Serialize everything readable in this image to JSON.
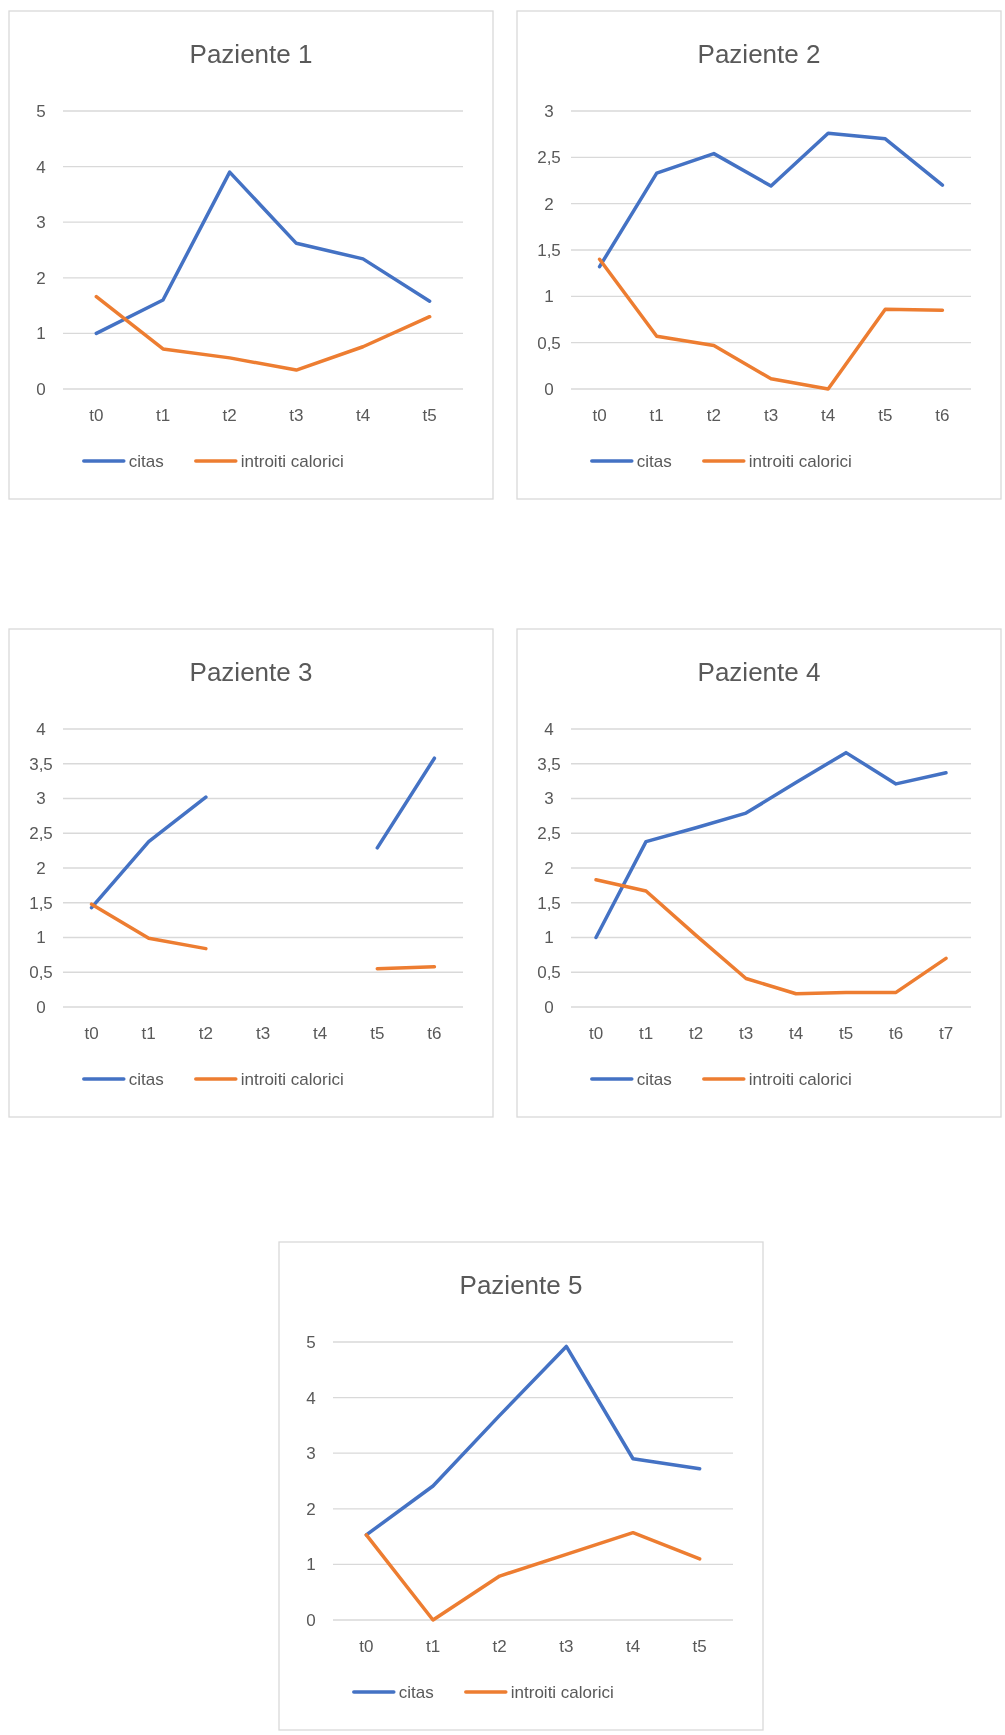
{
  "chart_data": [
    {
      "type": "line",
      "title": "Paziente 1",
      "categories": [
        "t0",
        "t1",
        "t2",
        "t3",
        "t4",
        "t5"
      ],
      "series": [
        {
          "name": "citas",
          "color": "#4472c4",
          "values": [
            1.0,
            1.6,
            3.9,
            2.62,
            2.34,
            1.58
          ]
        },
        {
          "name": "introiti calorici",
          "color": "#ed7d31",
          "values": [
            1.66,
            0.72,
            0.56,
            0.34,
            0.76,
            1.3
          ]
        }
      ],
      "ylim": [
        0,
        5
      ],
      "yticks": [
        0,
        1,
        2,
        3,
        4,
        5
      ],
      "grid": "y",
      "legend": "bottom"
    },
    {
      "type": "line",
      "title": "Paziente 2",
      "categories": [
        "t0",
        "t1",
        "t2",
        "t3",
        "t4",
        "t5",
        "t6"
      ],
      "series": [
        {
          "name": "citas",
          "color": "#4472c4",
          "values": [
            1.32,
            2.33,
            2.54,
            2.19,
            2.76,
            2.7,
            2.2
          ]
        },
        {
          "name": "introiti calorici",
          "color": "#ed7d31",
          "values": [
            1.4,
            0.57,
            0.47,
            0.11,
            0.0,
            0.86,
            0.85
          ]
        }
      ],
      "ylim": [
        0,
        3
      ],
      "yticks": [
        0,
        {
          "value": 0.5,
          "label": "0,5"
        },
        1,
        {
          "value": 1.5,
          "label": "1,5"
        },
        2,
        {
          "value": 2.5,
          "label": "2,5"
        },
        3
      ],
      "grid": "y",
      "legend": "bottom"
    },
    {
      "type": "line",
      "title": "Paziente 3",
      "categories": [
        "t0",
        "t1",
        "t2",
        "t3",
        "t4",
        "t5",
        "t6"
      ],
      "series": [
        {
          "name": "citas",
          "color": "#4472c4",
          "values": [
            1.43,
            2.38,
            3.02,
            null,
            null,
            2.29,
            3.58
          ]
        },
        {
          "name": "introiti calorici",
          "color": "#ed7d31",
          "values": [
            1.48,
            0.99,
            0.84,
            null,
            null,
            0.55,
            0.58
          ]
        }
      ],
      "ylim": [
        0,
        4
      ],
      "yticks": [
        0,
        {
          "value": 0.5,
          "label": "0,5"
        },
        1,
        {
          "value": 1.5,
          "label": "1,5"
        },
        2,
        {
          "value": 2.5,
          "label": "2,5"
        },
        3,
        {
          "value": 3.5,
          "label": "3,5"
        },
        4
      ],
      "grid": "y",
      "legend": "bottom"
    },
    {
      "type": "line",
      "title": "Paziente 4",
      "categories": [
        "t0",
        "t1",
        "t2",
        "t3",
        "t4",
        "t5",
        "t6",
        "t7"
      ],
      "series": [
        {
          "name": "citas",
          "color": "#4472c4",
          "values": [
            1.0,
            2.38,
            2.58,
            2.79,
            3.23,
            3.66,
            3.21,
            3.37
          ]
        },
        {
          "name": "introiti calorici",
          "color": "#ed7d31",
          "values": [
            1.83,
            1.67,
            1.03,
            0.41,
            0.19,
            0.21,
            0.21,
            0.7
          ]
        }
      ],
      "ylim": [
        0,
        4
      ],
      "yticks": [
        0,
        {
          "value": 0.5,
          "label": "0,5"
        },
        1,
        {
          "value": 1.5,
          "label": "1,5"
        },
        2,
        {
          "value": 2.5,
          "label": "2,5"
        },
        3,
        {
          "value": 3.5,
          "label": "3,5"
        },
        4
      ],
      "grid": "y",
      "legend": "bottom"
    },
    {
      "type": "line",
      "title": "Paziente 5",
      "categories": [
        "t0",
        "t1",
        "t2",
        "t3",
        "t4",
        "t5"
      ],
      "series": [
        {
          "name": "citas",
          "color": "#4472c4",
          "values": [
            1.53,
            2.41,
            3.68,
            4.92,
            2.9,
            2.72
          ]
        },
        {
          "name": "introiti calorici",
          "color": "#ed7d31",
          "values": [
            1.53,
            0.0,
            0.79,
            1.18,
            1.57,
            1.1
          ]
        }
      ],
      "ylim": [
        0,
        5
      ],
      "yticks": [
        0,
        1,
        2,
        3,
        4,
        5
      ],
      "grid": "y",
      "legend": "bottom"
    }
  ]
}
